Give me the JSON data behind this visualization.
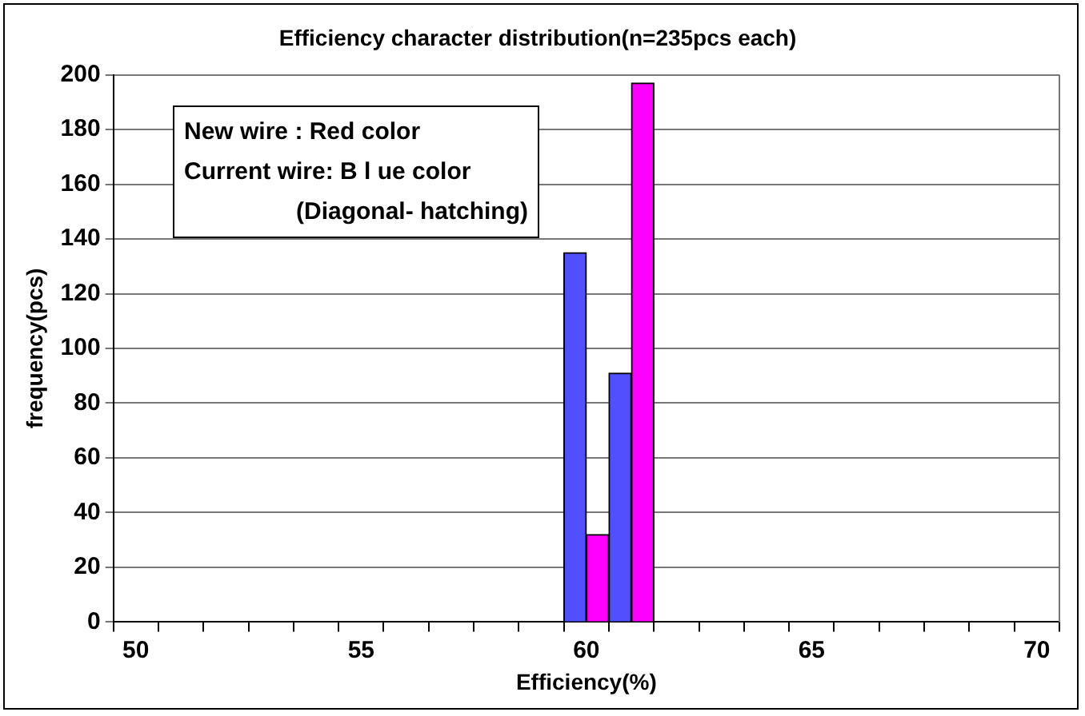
{
  "chart_data": {
    "type": "bar",
    "title": "Efficiency character distribution(n=235pcs each)",
    "xlabel": "Efficiency(%)",
    "ylabel": "frequency(pcs)",
    "categories": [
      "50",
      null,
      null,
      null,
      null,
      "55",
      null,
      null,
      null,
      null,
      "60",
      null,
      null,
      null,
      null,
      "65",
      null,
      null,
      null,
      null,
      "70"
    ],
    "series": [
      {
        "color": "#5050ff",
        "values": [
          0,
          0,
          0,
          0,
          0,
          0,
          0,
          0,
          0,
          0,
          135,
          91,
          0,
          0,
          0,
          0,
          0,
          0,
          0,
          0,
          0
        ]
      },
      {
        "color": "#ff00ff",
        "values": [
          0,
          0,
          0,
          0,
          0,
          0,
          0,
          0,
          0,
          0,
          32,
          197,
          0,
          0,
          0,
          0,
          0,
          0,
          0,
          0,
          0
        ]
      }
    ],
    "ylim": [
      0,
      200
    ],
    "yticks": [
      0,
      20,
      40,
      60,
      80,
      100,
      120,
      140,
      160,
      180,
      200
    ],
    "grid": "y",
    "legend": false,
    "annotations": [
      "New wire : Red color",
      "Current wire: B l ue color",
      "(Diagonal- hatching)"
    ]
  }
}
